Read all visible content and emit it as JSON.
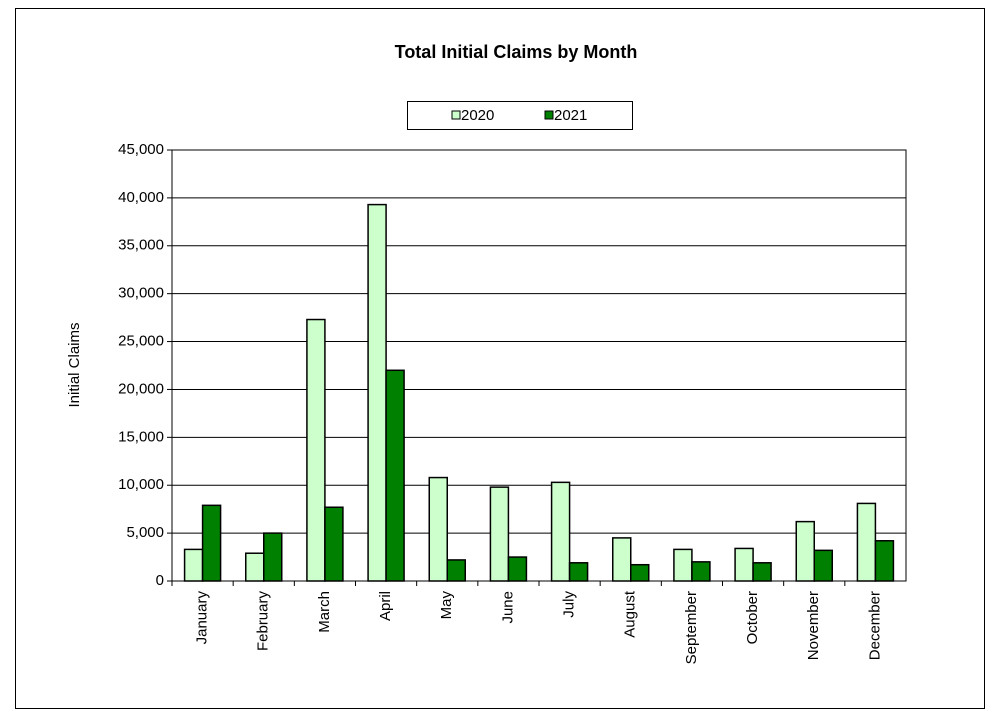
{
  "chart_data": {
    "type": "bar",
    "title": "Total Initial Claims by Month",
    "y_label": "Initial Claims",
    "categories": [
      "January",
      "February",
      "March",
      "April",
      "May",
      "June",
      "July",
      "August",
      "September",
      "October",
      "November",
      "December"
    ],
    "series": [
      {
        "name": "2020",
        "color": "#ccffcc",
        "values": [
          3300,
          2900,
          27300,
          39300,
          10800,
          9800,
          10300,
          4500,
          3300,
          3400,
          6200,
          8100
        ]
      },
      {
        "name": "2021",
        "color": "#008000",
        "values": [
          7900,
          5000,
          7700,
          22000,
          2200,
          2500,
          1900,
          1700,
          2000,
          1900,
          3200,
          4200
        ]
      }
    ],
    "ylim": [
      0,
      45000
    ],
    "yticks": [
      0,
      {
        "value": 5000,
        "label": "5,000"
      },
      {
        "value": 10000,
        "label": "10,000"
      },
      {
        "value": 15000,
        "label": "15,000"
      },
      {
        "value": 20000,
        "label": "20,000"
      },
      {
        "value": 25000,
        "label": "25,000"
      },
      {
        "value": 30000,
        "label": "30,000"
      },
      {
        "value": 35000,
        "label": "35,000"
      },
      {
        "value": 40000,
        "label": "40,000"
      },
      {
        "value": 45000,
        "label": "45,000"
      }
    ],
    "grid": true,
    "legend": "top"
  }
}
